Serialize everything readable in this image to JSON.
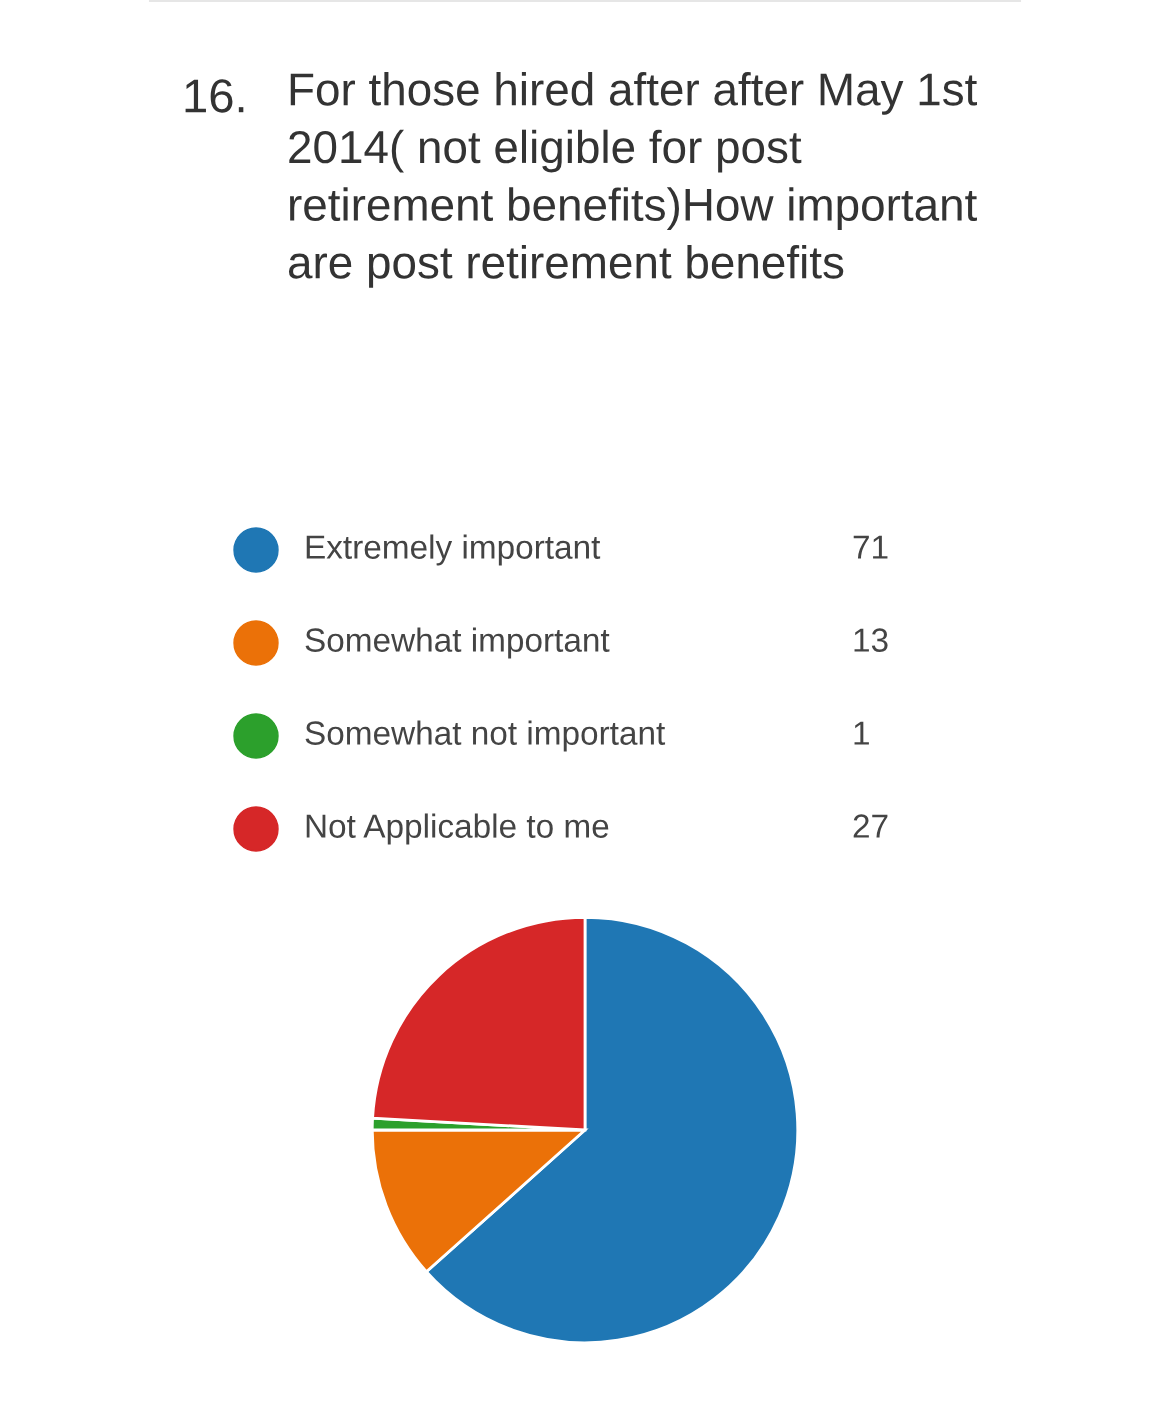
{
  "chart_data": {
    "type": "pie",
    "title": "For those hired after after May 1st 2014( not eligible for post retirement benefits)How important are post retirement benefits",
    "annotations": [
      "16."
    ],
    "categories": [
      "Extremely important",
      "Somewhat important",
      "Somewhat not important",
      "Not Applicable to me"
    ],
    "values": [
      71,
      13,
      1,
      27
    ],
    "colors": [
      "#1f77b4",
      "#eb7108",
      "#2ca02c",
      "#d62728"
    ],
    "data_labels": true,
    "legend": "top"
  }
}
